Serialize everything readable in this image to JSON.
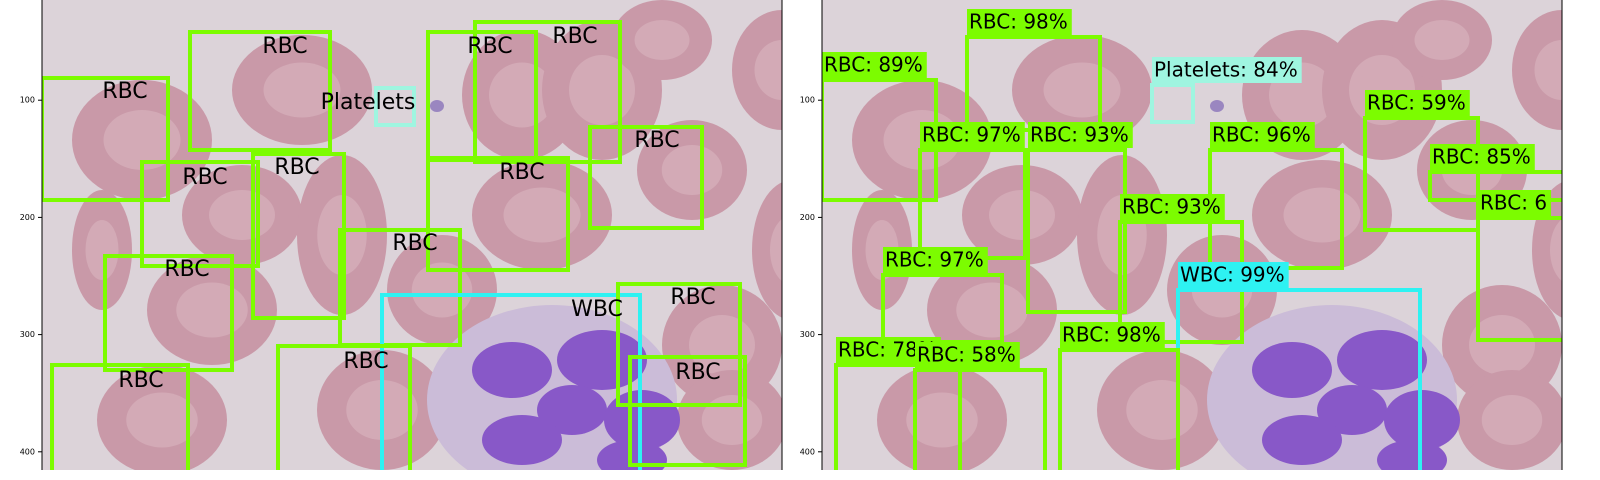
{
  "left_panel": {
    "yticks": [
      100,
      200,
      300,
      400
    ],
    "detections": [
      {
        "label": "RBC"
      },
      {
        "label": "RBC"
      },
      {
        "label": "Platelets"
      },
      {
        "label": "RBC"
      },
      {
        "label": "RBC"
      },
      {
        "label": "RBC"
      },
      {
        "label": "RBC"
      },
      {
        "label": "RBC"
      },
      {
        "label": "RBC"
      },
      {
        "label": "RBC"
      },
      {
        "label": "RBC"
      },
      {
        "label": "WBC"
      },
      {
        "label": "RBC"
      },
      {
        "label": "RBC"
      },
      {
        "label": "RBC"
      },
      {
        "label": "RBC"
      }
    ]
  },
  "right_panel": {
    "yticks": [
      100,
      200,
      300,
      400
    ],
    "detections": [
      {
        "label": "RBC: 98%"
      },
      {
        "label": "RBC: 89%"
      },
      {
        "label": "Platelets: 84%"
      },
      {
        "label": "RBC: 59%"
      },
      {
        "label": "RBC: 97%"
      },
      {
        "label": "RBC: 93%"
      },
      {
        "label": "RBC: 96%"
      },
      {
        "label": "RBC: 85%"
      },
      {
        "label": "RBC: 6"
      },
      {
        "label": "RBC: 93%"
      },
      {
        "label": "RBC: 97%"
      },
      {
        "label": "WBC: 99%"
      },
      {
        "label": "RBC: 98%"
      },
      {
        "label": "RBC: 78%"
      },
      {
        "label": "RBC: 58%"
      }
    ]
  }
}
